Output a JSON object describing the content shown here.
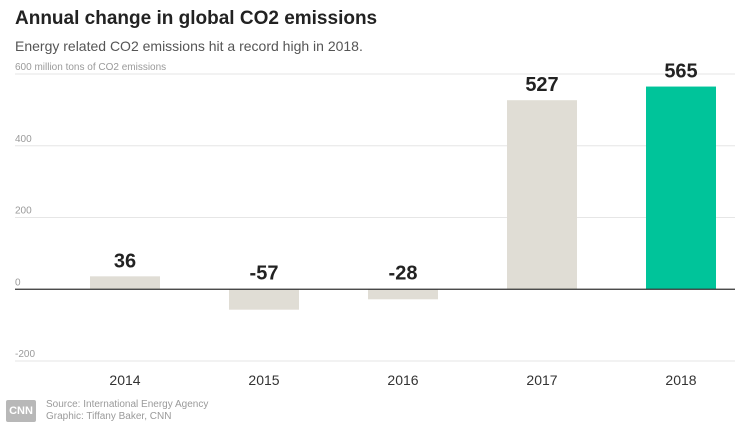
{
  "chart_data": {
    "type": "bar",
    "title": "Annual change in global CO2 emissions",
    "subtitle": "Energy related CO2 emissions hit a record high in 2018.",
    "ylabel": "million tons of CO2 emissions",
    "categories": [
      "2014",
      "2015",
      "2016",
      "2017",
      "2018"
    ],
    "values": [
      36,
      -57,
      -28,
      527,
      565
    ],
    "data_labels": [
      "36",
      "-57",
      "-28",
      "527",
      "565"
    ],
    "highlight_index": 4,
    "ylim": [
      -200,
      600
    ],
    "yticks": [
      600,
      400,
      200,
      0,
      -200
    ],
    "ytick_labels": [
      "600 million tons of CO2 emissions",
      "400",
      "200",
      "0",
      "-200"
    ],
    "grid": true,
    "legend": "none"
  },
  "colors": {
    "bar_default": "#e0ddd5",
    "bar_highlight": "#00c49a",
    "grid": "#e6e6e6",
    "zero_line": "#333333",
    "tick_text": "#9a9a9a",
    "label_text": "#222222"
  },
  "footer": {
    "logo_text": "CNN",
    "source": "Source: International Energy Agency",
    "graphic": "Graphic: Tiffany Baker, CNN"
  }
}
